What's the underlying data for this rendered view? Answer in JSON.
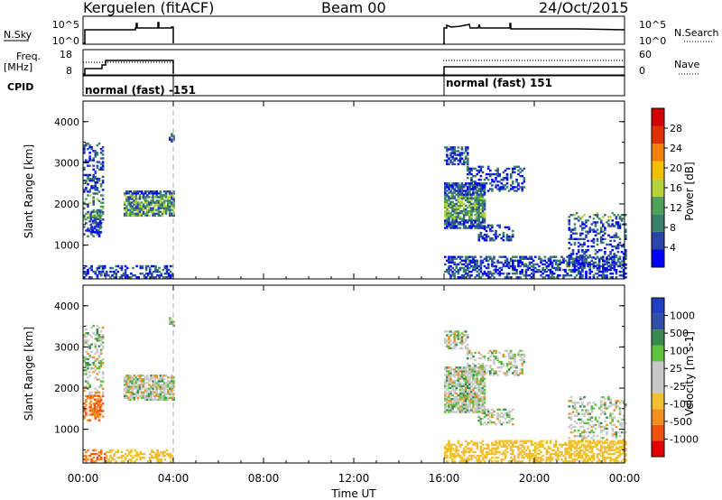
{
  "header": {
    "site": "Kerguelen (fitACF)",
    "beam": "Beam 00",
    "date": "24/Oct/2015"
  },
  "panels": {
    "nsky": {
      "label": "N.Sky",
      "ticks": [
        "10^5",
        "10^0"
      ],
      "right_label": "N.Search",
      "right_ticks": [
        "10^5",
        "10^0"
      ]
    },
    "freq": {
      "label_line1": "Freq.",
      "label_line2": "[MHz]",
      "ticks": [
        "18",
        "8"
      ],
      "right_label": "Nave",
      "right_ticks": [
        "60",
        "0"
      ]
    },
    "cpid": {
      "label": "CPID",
      "segments": [
        "normal (fast) -151",
        "normal (fast) 151"
      ]
    }
  },
  "colors": {
    "power": [
      "#0000ff",
      "#2a45a8",
      "#3a7f6a",
      "#4fa05a",
      "#b6d23a",
      "#f0c000",
      "#f08000",
      "#e03000",
      "#d00000"
    ],
    "velocity": [
      "#2040c0",
      "#3050a8",
      "#3a8a50",
      "#60c040",
      "#c8c8c8",
      "#c8c8c8",
      "#f0c030",
      "#f09020",
      "#f05010",
      "#e00000"
    ]
  },
  "chart_data": [
    {
      "type": "heatmap",
      "title": "",
      "xlabel": "",
      "ylabel": "Slant Range [km]",
      "x_ticks": [
        "00:00",
        "04:00",
        "08:00",
        "12:00",
        "16:00",
        "20:00",
        "00:00"
      ],
      "y_ticks": [
        "4000",
        "3000",
        "2000",
        "1000"
      ],
      "ylim": [
        180,
        4500
      ],
      "colorbar": {
        "label": "Power [dB]",
        "ticks": [
          "28",
          "24",
          "20",
          "16",
          "12",
          "8",
          "4"
        ],
        "range": [
          0,
          30
        ]
      }
    },
    {
      "type": "heatmap",
      "title": "",
      "xlabel": "Time UT",
      "ylabel": "Slant Range [km]",
      "x_ticks": [
        "00:00",
        "04:00",
        "08:00",
        "12:00",
        "16:00",
        "20:00",
        "00:00"
      ],
      "y_ticks": [
        "4000",
        "3000",
        "2000",
        "1000"
      ],
      "ylim": [
        180,
        4500
      ],
      "colorbar": {
        "label": "Velocity [m s-1]",
        "ticks": [
          "1000",
          "500",
          "100",
          "25",
          "-25",
          "-100",
          "-500",
          "-1000"
        ],
        "range": [
          -1000,
          1000
        ]
      }
    }
  ]
}
